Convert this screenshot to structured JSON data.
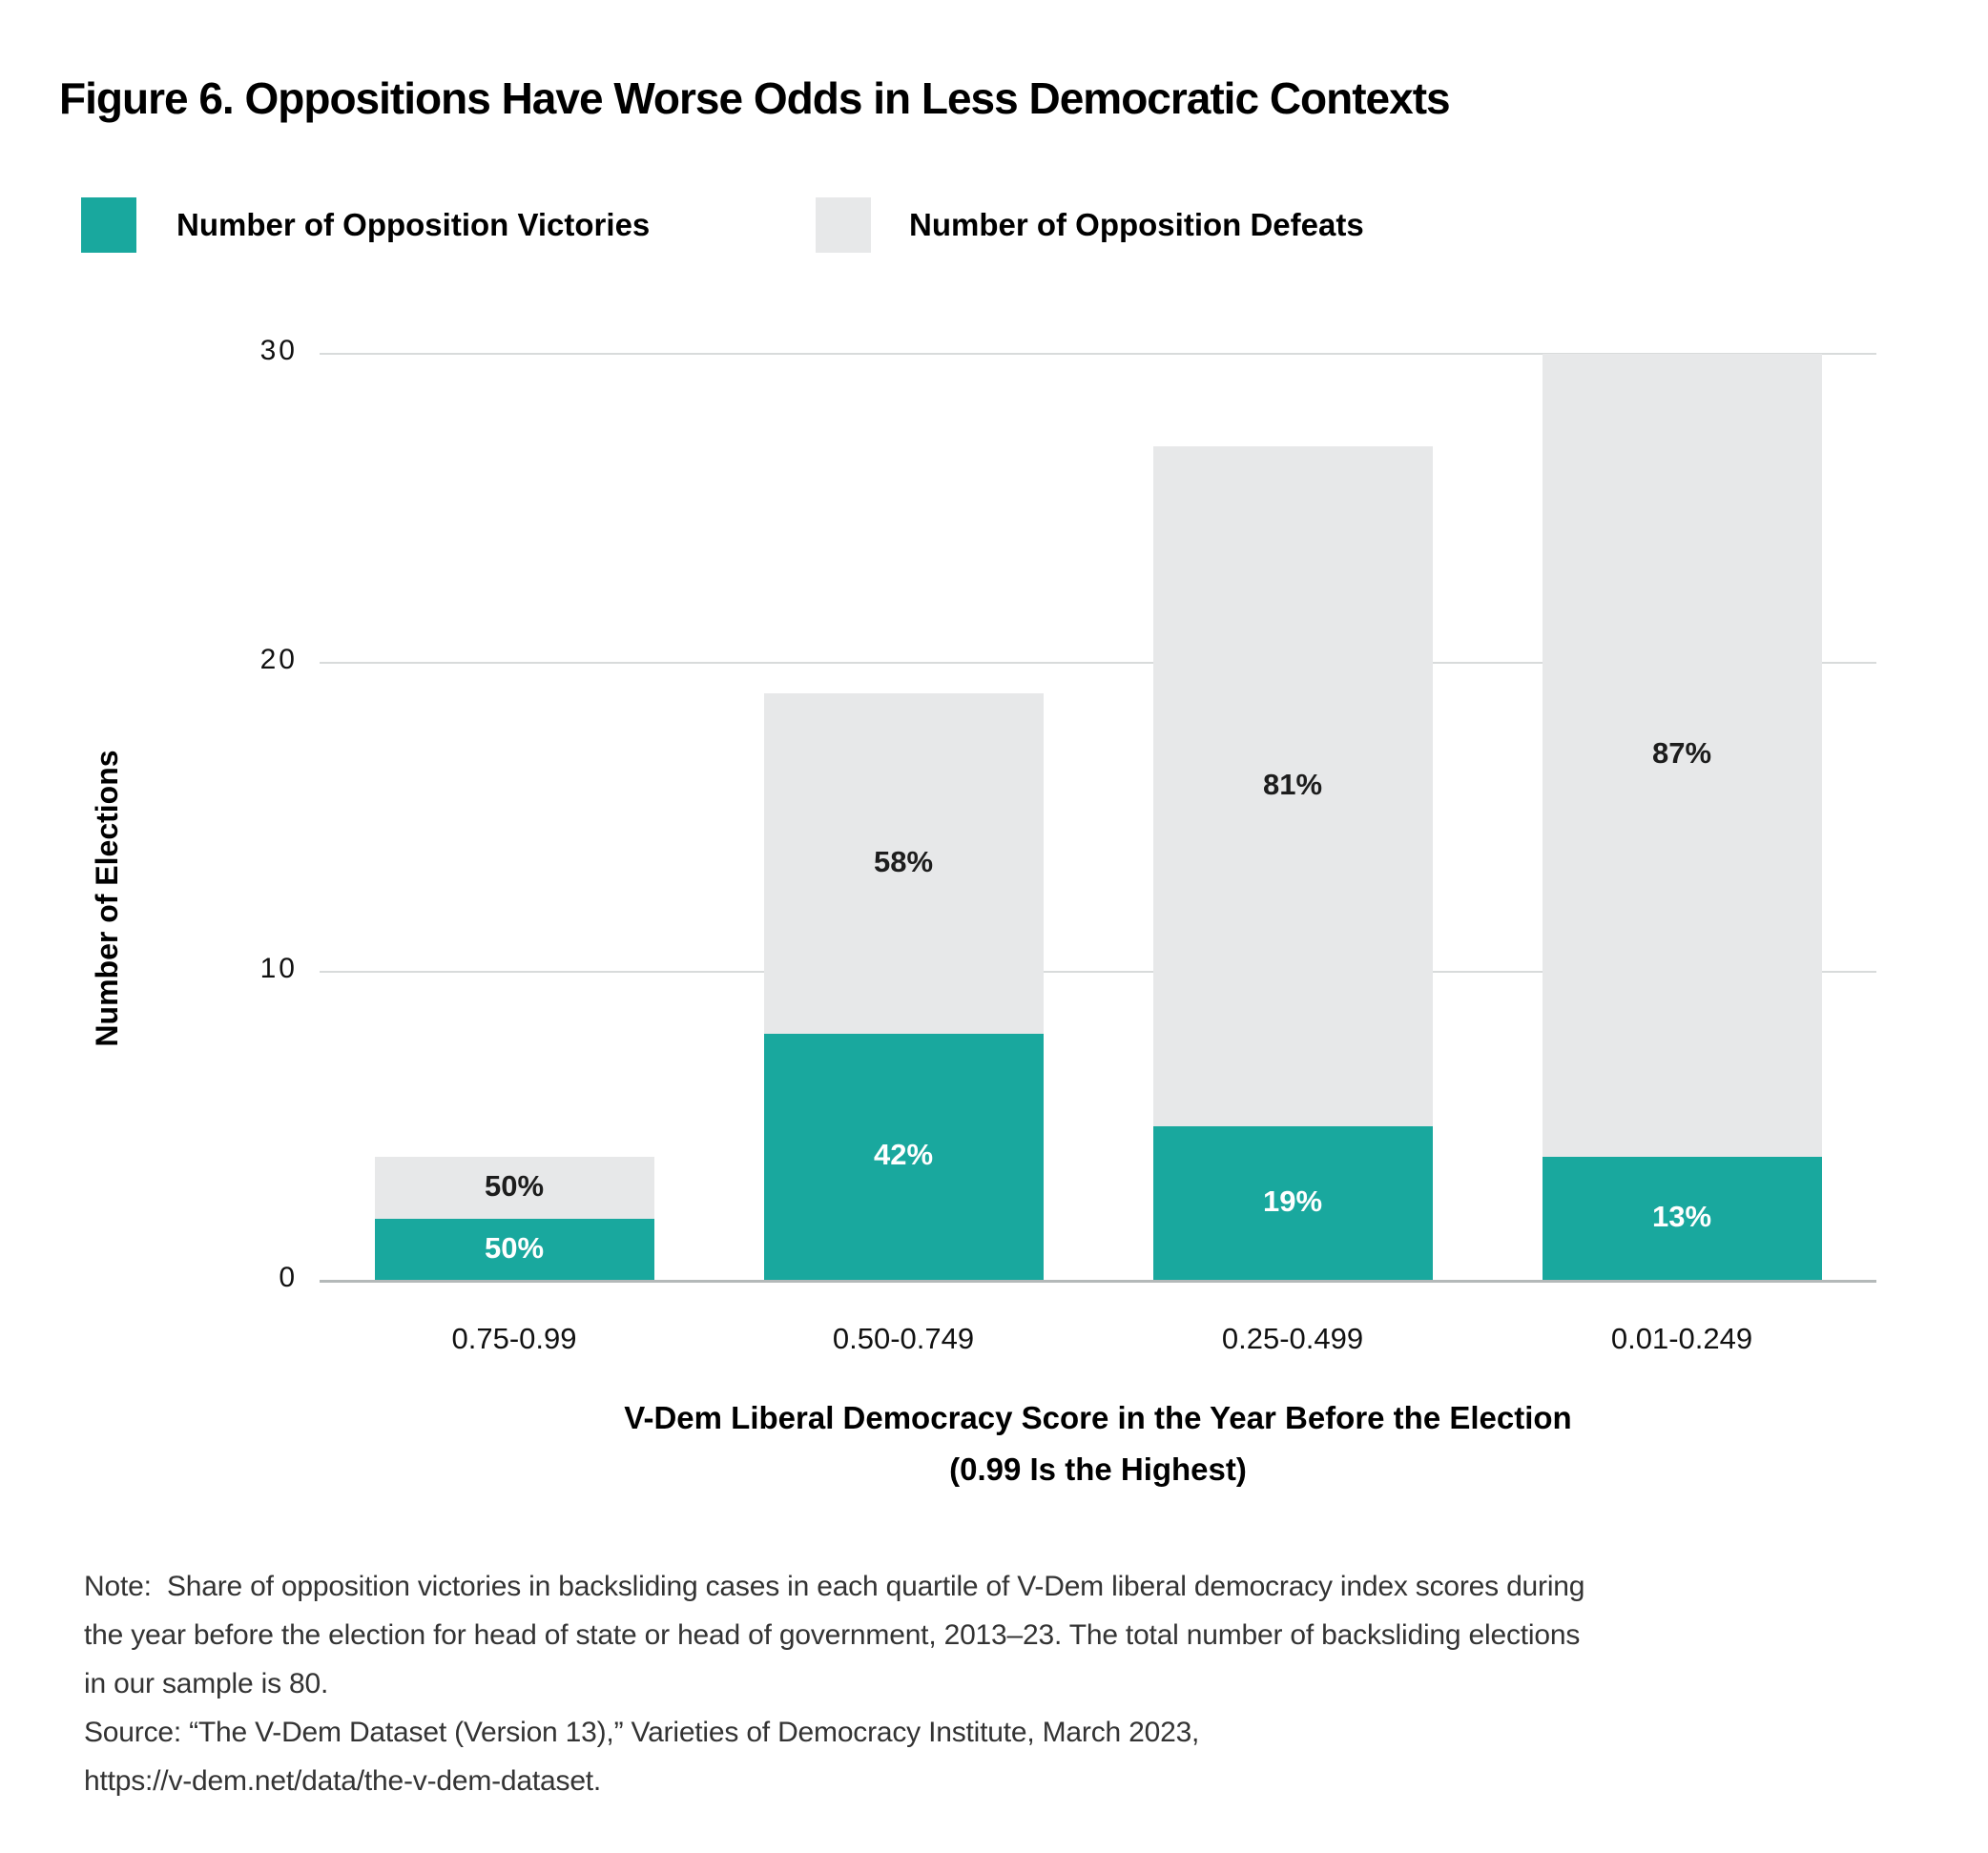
{
  "title": "Figure 6. Oppositions Have Worse Odds in Less Democratic Contexts",
  "legend": [
    {
      "label": "Number of Opposition Victories",
      "color": "#19A89E"
    },
    {
      "label": "Number of Opposition Defeats",
      "color": "#E7E8E9"
    }
  ],
  "chart_data": {
    "type": "bar",
    "stacked": true,
    "title": "Figure 6. Oppositions Have Worse Odds in Less Democratic Contexts",
    "categories": [
      "0.75-0.99",
      "0.50-0.749",
      "0.25-0.499",
      "0.01-0.249"
    ],
    "series": [
      {
        "name": "Number of Opposition Victories",
        "color": "#19A89E",
        "values": [
          2,
          8,
          5,
          4
        ],
        "percent_labels": [
          "50%",
          "42%",
          "19%",
          "13%"
        ],
        "label_color": "#FFFFFF"
      },
      {
        "name": "Number of Opposition Defeats",
        "color": "#E7E8E9",
        "values": [
          2,
          11,
          22,
          26
        ],
        "percent_labels": [
          "50%",
          "58%",
          "81%",
          "87%"
        ],
        "label_color": "#1D1D1D"
      }
    ],
    "totals": [
      4,
      19,
      27,
      30
    ],
    "xlabel_line1": "V-Dem Liberal Democracy Score in the Year Before the Election",
    "xlabel_line2": "(0.99 Is the Highest)",
    "ylabel": "Number of Elections",
    "ylim": [
      0,
      30
    ],
    "yticks": [
      0,
      10,
      20,
      30
    ],
    "grid": true,
    "legend_position": "top-left"
  },
  "notes": {
    "lines": [
      "Note:  Share of opposition victories in backsliding cases in each quartile of V-Dem liberal democracy index scores during",
      "the year before the election for head of state or head of government, 2013–23. The total number of backsliding elections",
      "in our sample is 80.",
      "Source: “The V-Dem Dataset (Version 13),” Varieties of Democracy Institute, March 2023,",
      "https://v-dem.net/data/the-v-dem-dataset."
    ]
  }
}
